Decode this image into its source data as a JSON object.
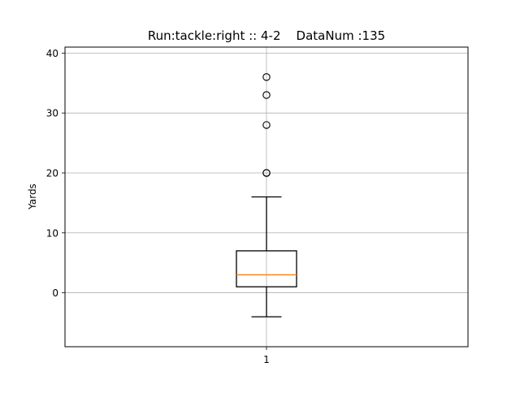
{
  "chart_data": {
    "type": "box",
    "title": "Run:tackle:right :: 4-2    DataNum :135",
    "xlabel": "",
    "ylabel": "Yards",
    "categories": [
      "1"
    ],
    "ylim": [
      -9,
      41
    ],
    "yticks": [
      0,
      10,
      20,
      30,
      40
    ],
    "grid": true,
    "boxes": [
      {
        "category": "1",
        "whisker_low": -4,
        "q1": 1,
        "median": 3,
        "q3": 7,
        "whisker_high": 16,
        "outliers": [
          20,
          20,
          28,
          33,
          36
        ]
      }
    ],
    "colors": {
      "box": "#000000",
      "median": "#ff7f0e",
      "grid": "#b0b0b0"
    }
  }
}
